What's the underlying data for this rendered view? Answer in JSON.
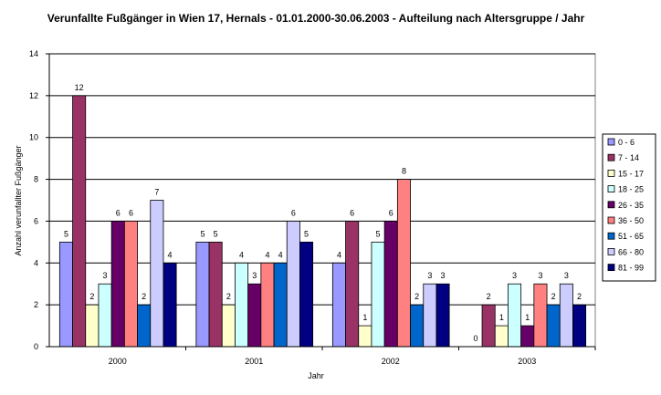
{
  "chart_data": {
    "type": "bar",
    "title": "Verunfallte Fußgänger in Wien 17, Hernals - 01.01.2000-30.06.2003 - Aufteilung nach Altersgruppe / Jahr",
    "xlabel": "Jahr",
    "ylabel": "Anzahl verunfallter Fußgänger",
    "ylim": [
      0,
      14
    ],
    "yticks": [
      0,
      2,
      4,
      6,
      8,
      10,
      12,
      14
    ],
    "grid": true,
    "legend_position": "right",
    "categories": [
      "2000",
      "2001",
      "2002",
      "2003"
    ],
    "series": [
      {
        "name": "0 - 6",
        "color": "#9999ff",
        "values": [
          5,
          5,
          4,
          0
        ]
      },
      {
        "name": "7 - 14",
        "color": "#993366",
        "values": [
          12,
          5,
          6,
          2
        ]
      },
      {
        "name": "15 - 17",
        "color": "#ffffcc",
        "values": [
          2,
          2,
          1,
          1
        ]
      },
      {
        "name": "18 - 25",
        "color": "#ccffff",
        "values": [
          3,
          4,
          5,
          3
        ]
      },
      {
        "name": "26 - 35",
        "color": "#660066",
        "values": [
          6,
          3,
          6,
          1
        ]
      },
      {
        "name": "36 - 50",
        "color": "#ff8080",
        "values": [
          6,
          4,
          8,
          3
        ]
      },
      {
        "name": "51 - 65",
        "color": "#0066cc",
        "values": [
          2,
          4,
          2,
          2
        ]
      },
      {
        "name": "66 - 80",
        "color": "#ccccff",
        "values": [
          7,
          6,
          3,
          3
        ]
      },
      {
        "name": "81 - 99",
        "color": "#000080",
        "values": [
          4,
          5,
          3,
          2
        ]
      }
    ]
  }
}
